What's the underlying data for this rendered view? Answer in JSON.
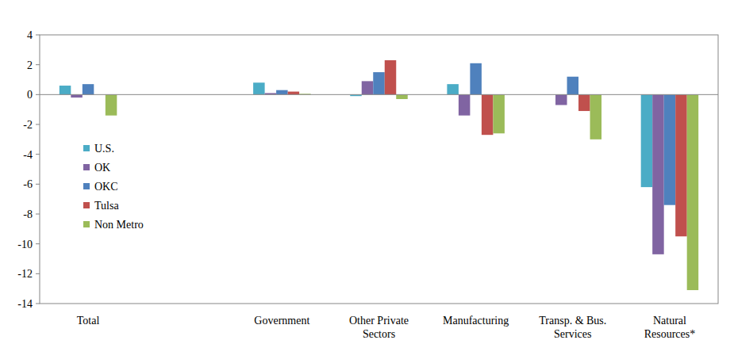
{
  "chart_data": {
    "type": "bar",
    "categories": [
      "Total",
      null,
      "Government",
      "Other Private Sectors",
      "Manufacturing",
      "Transp. & Bus. Services",
      "Natural Resources*"
    ],
    "series": [
      {
        "name": "U.S.",
        "color": "#4bacc6",
        "values": [
          0.6,
          null,
          0.8,
          -0.1,
          0.7,
          0.0,
          -6.2
        ]
      },
      {
        "name": "OK",
        "color": "#8064a2",
        "values": [
          -0.2,
          null,
          0.1,
          0.9,
          -1.4,
          -0.7,
          -10.7
        ]
      },
      {
        "name": "OKC",
        "color": "#4f81bd",
        "values": [
          0.7,
          null,
          0.3,
          1.5,
          2.1,
          1.2,
          -7.4
        ]
      },
      {
        "name": "Tulsa",
        "color": "#c0504d",
        "values": [
          0.0,
          null,
          0.2,
          2.3,
          -2.7,
          -1.1,
          -9.5
        ]
      },
      {
        "name": "Non Metro",
        "color": "#9bbb59",
        "values": [
          -1.4,
          null,
          0.05,
          -0.3,
          -2.6,
          -3.0,
          -13.1
        ]
      }
    ],
    "ylim": [
      -14,
      4
    ],
    "yticks": [
      -14,
      -12,
      -10,
      -8,
      -6,
      -4,
      -2,
      0,
      2,
      4
    ],
    "grid": false,
    "legend": "left"
  }
}
